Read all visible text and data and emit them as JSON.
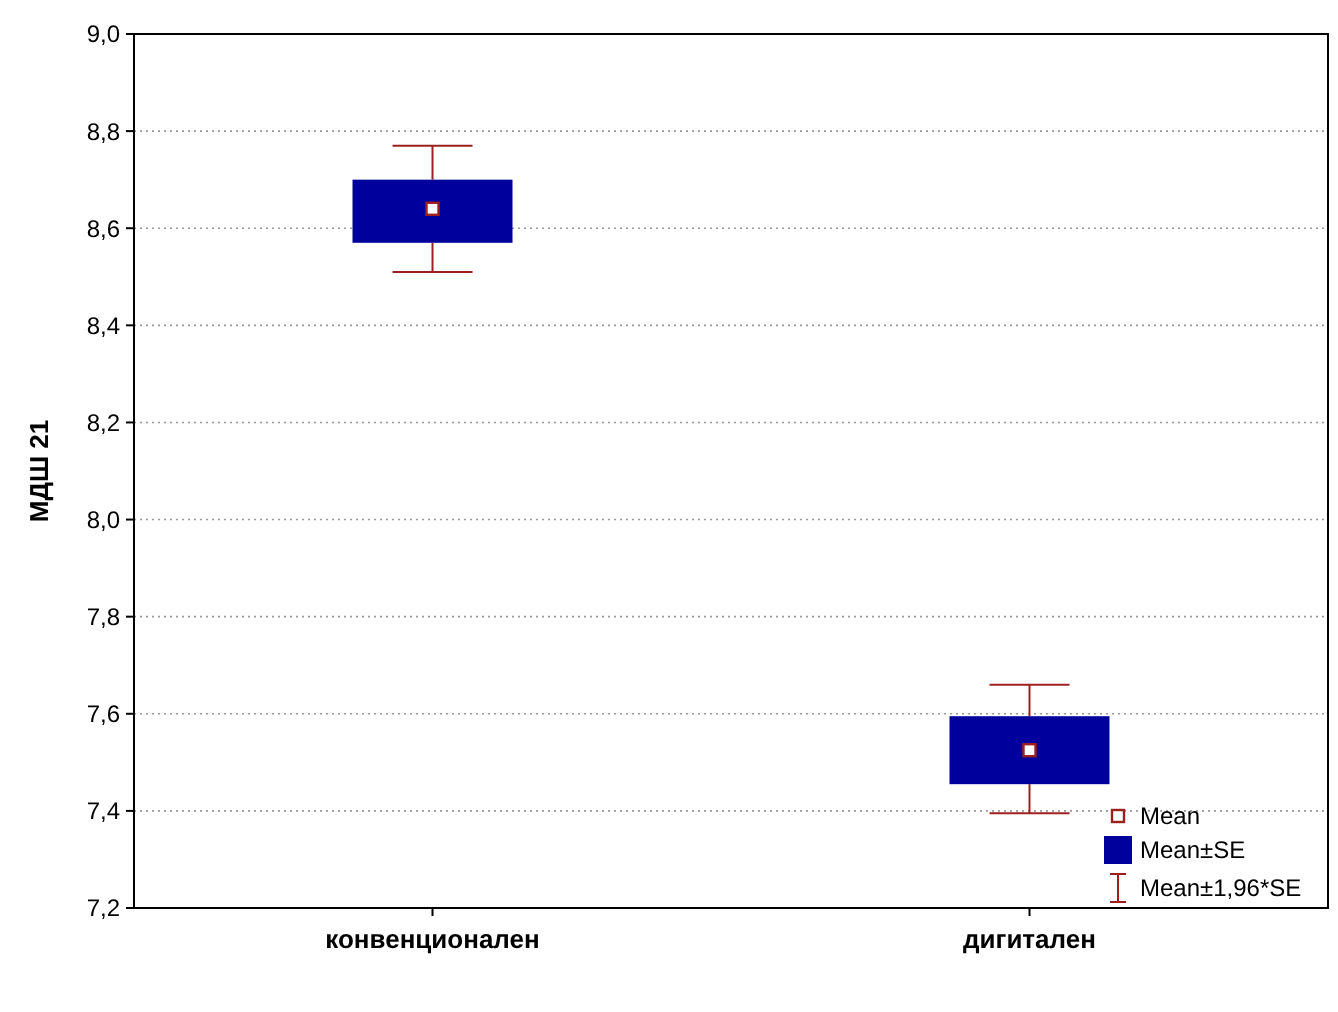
{
  "chart_data": {
    "type": "box",
    "ylabel": "МДШ 21",
    "categories": [
      "конвенционален",
      "дигитален"
    ],
    "series": [
      {
        "name": "Mean±SE",
        "color": "#00009c",
        "boxes": [
          {
            "low": 8.51,
            "q1": 8.57,
            "median": 8.64,
            "q3": 8.7,
            "high": 8.77
          },
          {
            "low": 7.395,
            "q1": 7.455,
            "median": 7.525,
            "q3": 7.595,
            "high": 7.66
          }
        ]
      }
    ],
    "ylim": [
      7.2,
      9.0
    ],
    "yticks": [
      {
        "value": 7.2,
        "label": "7,2"
      },
      {
        "value": 7.4,
        "label": "7,4"
      },
      {
        "value": 7.6,
        "label": "7,6"
      },
      {
        "value": 7.8,
        "label": "7,8"
      },
      {
        "value": 8.0,
        "label": "8,0"
      },
      {
        "value": 8.2,
        "label": "8,2"
      },
      {
        "value": 8.4,
        "label": "8,4"
      },
      {
        "value": 8.6,
        "label": "8,6"
      },
      {
        "value": 8.8,
        "label": "8,8"
      },
      {
        "value": 9.0,
        "label": "9,0"
      }
    ],
    "grid": "y",
    "legend": "bottom right",
    "marker": "square",
    "annotations": [
      "Mean",
      "Mean±1,96*SE"
    ]
  }
}
